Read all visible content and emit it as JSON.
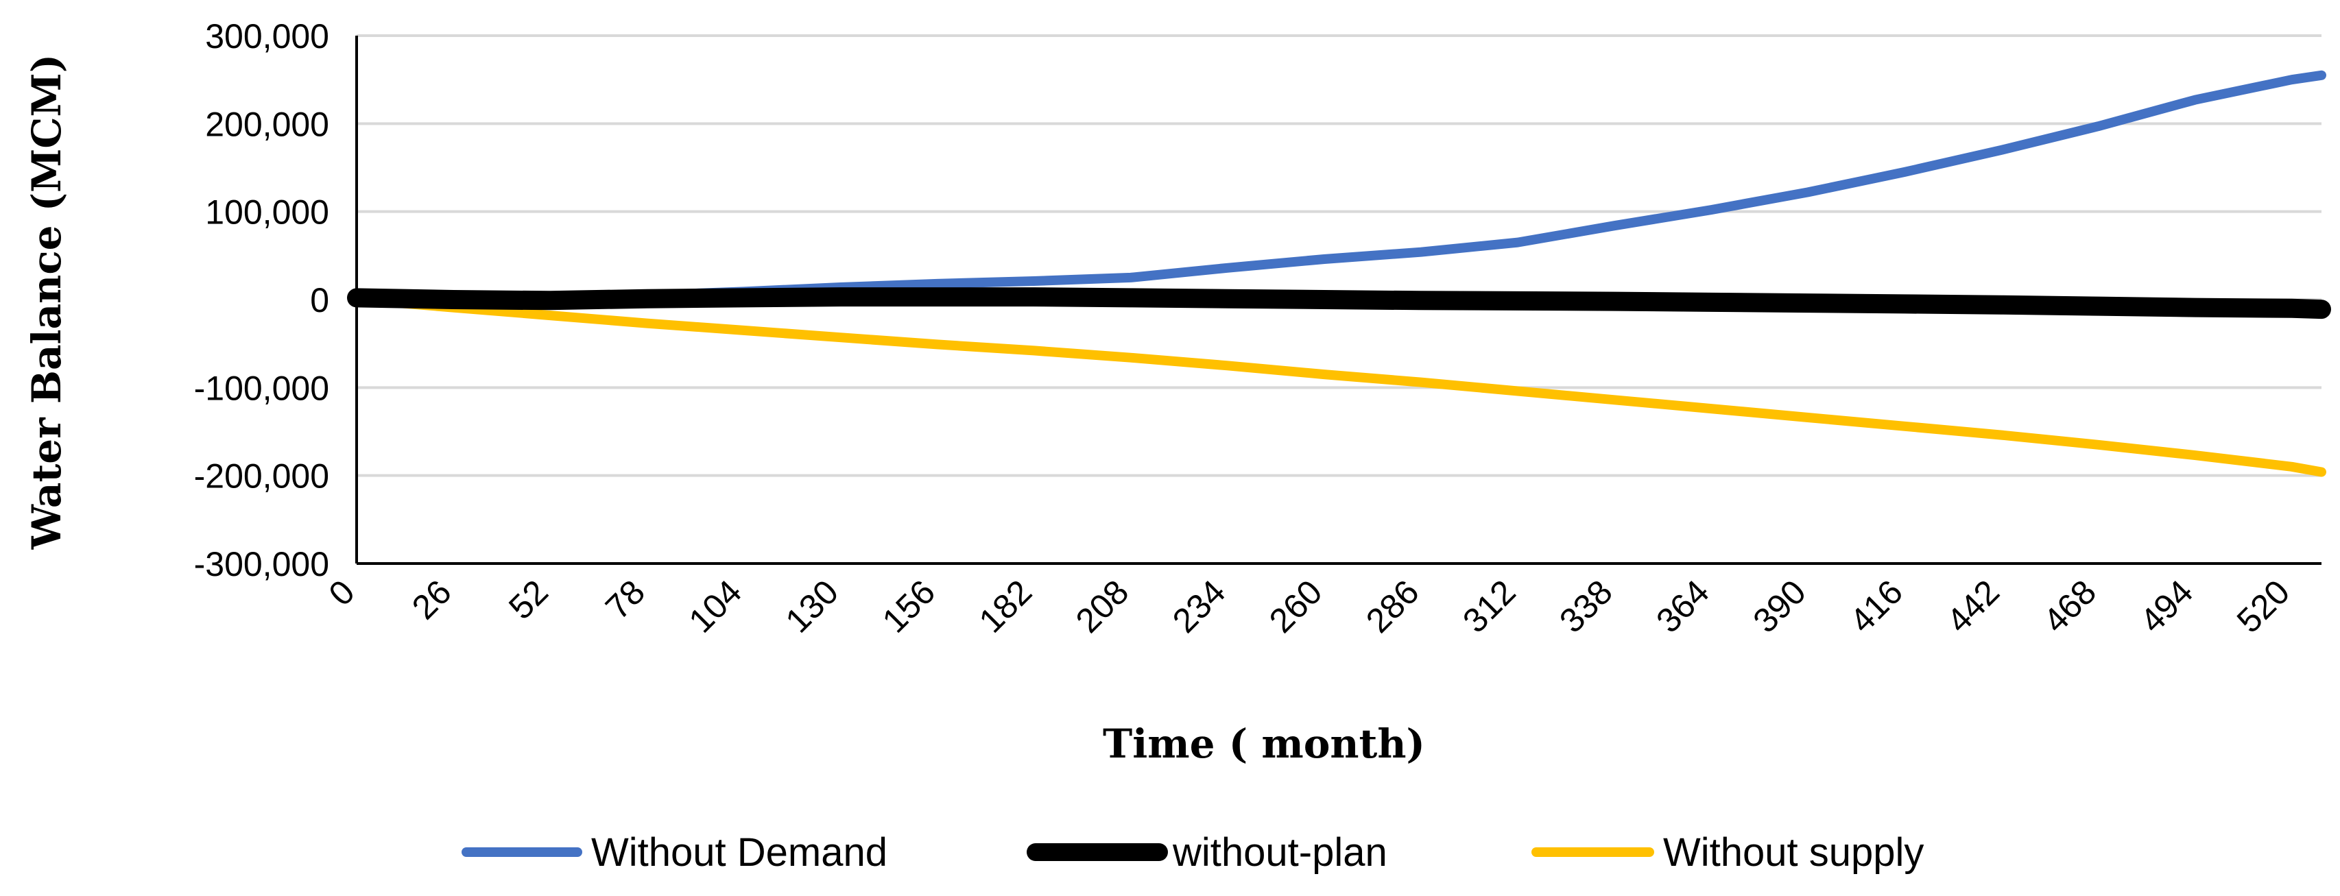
{
  "chart_data": {
    "type": "line",
    "title": "",
    "xlabel": "Time ( month)",
    "ylabel": "Water Balance (MCM)",
    "xlim": [
      0,
      528
    ],
    "ylim": [
      -300000,
      300000
    ],
    "x_ticks": [
      0,
      26,
      52,
      78,
      104,
      130,
      156,
      182,
      208,
      234,
      260,
      286,
      312,
      338,
      364,
      390,
      416,
      442,
      468,
      494,
      520
    ],
    "y_ticks": [
      300000,
      200000,
      100000,
      0,
      -100000,
      -200000,
      -300000
    ],
    "y_tick_labels": [
      "300,000",
      "200,000",
      "100,000",
      "0",
      "-100,000",
      "-200,000",
      "-300,000"
    ],
    "grid": "horizontal",
    "legend_position": "bottom",
    "series": [
      {
        "name": "Without Demand",
        "color": "#4472C4",
        "x": [
          0,
          26,
          52,
          78,
          104,
          130,
          156,
          182,
          208,
          234,
          260,
          286,
          312,
          338,
          364,
          390,
          416,
          442,
          468,
          494,
          520,
          528
        ],
        "y": [
          5000,
          4000,
          4000,
          5000,
          9000,
          14000,
          18000,
          21000,
          25000,
          36000,
          46000,
          54000,
          65000,
          84000,
          102000,
          122000,
          145000,
          170000,
          197000,
          227000,
          250000,
          255000
        ]
      },
      {
        "name": "without-plan",
        "color": "#000000",
        "x": [
          0,
          26,
          52,
          78,
          104,
          130,
          156,
          182,
          208,
          234,
          260,
          286,
          312,
          338,
          364,
          390,
          416,
          442,
          468,
          494,
          520,
          528
        ],
        "y": [
          2000,
          0,
          -1000,
          1000,
          2000,
          3000,
          3000,
          3000,
          2000,
          1000,
          0,
          -1000,
          -1500,
          -2000,
          -3000,
          -4000,
          -5000,
          -6000,
          -7500,
          -9000,
          -10000,
          -11000
        ]
      },
      {
        "name": "Without supply",
        "color": "#FFC000",
        "x": [
          0,
          26,
          52,
          78,
          104,
          130,
          156,
          182,
          208,
          234,
          260,
          286,
          312,
          338,
          364,
          390,
          416,
          442,
          468,
          494,
          520,
          528
        ],
        "y": [
          0,
          -9000,
          -18000,
          -27000,
          -35000,
          -43000,
          -51000,
          -58000,
          -66000,
          -75000,
          -85000,
          -94000,
          -104000,
          -114000,
          -124000,
          -134000,
          -144000,
          -154000,
          -165000,
          -177000,
          -190000,
          -196000
        ]
      }
    ]
  }
}
